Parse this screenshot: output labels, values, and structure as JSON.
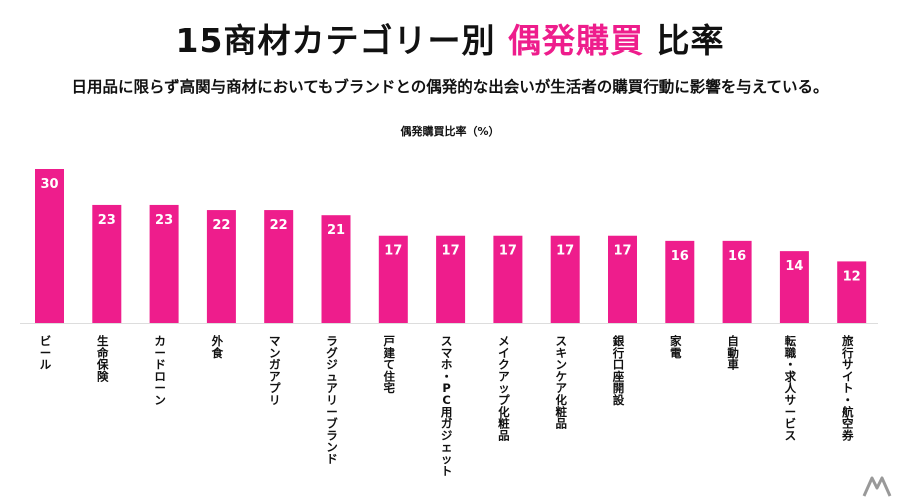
{
  "header": {
    "title_main": "15商材カテゴリー別",
    "title_accent": "偶発購買",
    "title_tail": "比率",
    "subtitle": "日用品に限らず高関与商材においてもブランドとの偶発的な出会いが生活者の購買行動に影響を与えている。"
  },
  "colors": {
    "accent": "#ee1d8c",
    "bar": "#ee1d8c",
    "axis": "#dddddd"
  },
  "chart_data": {
    "type": "bar",
    "title": "偶発購買比率（%）",
    "categories": [
      "ビール",
      "生命保険",
      "カードローン",
      "外食",
      "マンガアプリ",
      "ラグジュアリーブランド",
      "戸建て住宅",
      "スマホ・PC用ガジェット",
      "メイクアップ化粧品",
      "スキンケア化粧品",
      "銀行口座開設",
      "家電",
      "自動車",
      "転職・求人サービス",
      "旅行サイト・航空券"
    ],
    "values": [
      30,
      23,
      23,
      22,
      22,
      21,
      17,
      17,
      17,
      17,
      17,
      16,
      16,
      14,
      12
    ],
    "ylim": [
      0,
      30
    ],
    "grid": false,
    "legend": "none",
    "data_labels": true
  }
}
